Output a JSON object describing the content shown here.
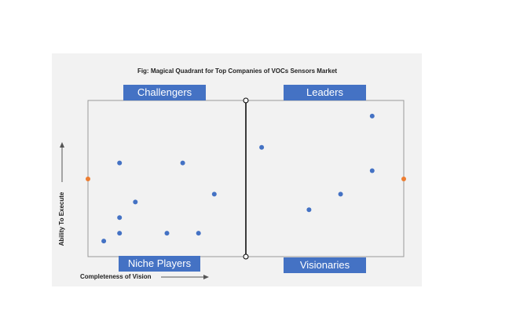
{
  "chart_data": {
    "type": "scatter",
    "title": "Fig: Magical Quadrant for Top Companies of VOCs Sensors Market",
    "xlabel": "Completeness of Vision",
    "ylabel": "Ability To Execute",
    "quadrants": [
      "Challengers",
      "Leaders",
      "Niche Players",
      "Visionaries"
    ],
    "xlim": [
      0,
      100
    ],
    "ylim": [
      0,
      100
    ],
    "color": "#4472c4",
    "x": [
      10,
      30,
      40,
      15,
      10,
      5,
      10,
      25,
      35,
      55,
      90,
      90,
      80,
      70
    ],
    "values": [
      60,
      60,
      40,
      35,
      25,
      10,
      15,
      15,
      15,
      70,
      90,
      55,
      40,
      30
    ]
  }
}
